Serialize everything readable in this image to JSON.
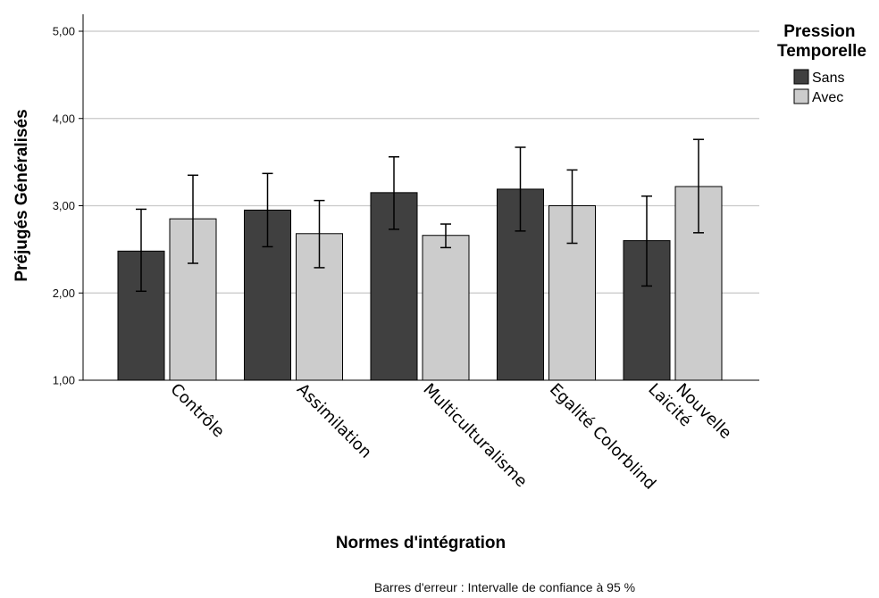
{
  "chart_data": {
    "type": "bar",
    "categories": [
      "Contrôle",
      "Assimilation",
      "Multiculturalisme",
      "Egalité Colorblind",
      "Nouvelle\nLaïcité"
    ],
    "category_lines": [
      [
        "Contrôle"
      ],
      [
        "Assimilation"
      ],
      [
        "Multiculturalisme"
      ],
      [
        "Egalité Colorblind"
      ],
      [
        "Nouvelle",
        "Laïcité"
      ]
    ],
    "series": [
      {
        "name": "Sans",
        "color": "#404040",
        "values": [
          2.48,
          2.95,
          3.15,
          3.19,
          2.6
        ],
        "ci_low": [
          2.02,
          2.53,
          2.73,
          2.71,
          2.08
        ],
        "ci_high": [
          2.96,
          3.37,
          3.56,
          3.67,
          3.11
        ]
      },
      {
        "name": "Avec",
        "color": "#cccccc",
        "values": [
          2.85,
          2.68,
          2.66,
          3.0,
          3.22
        ],
        "ci_low": [
          2.34,
          2.29,
          2.52,
          2.57,
          2.69
        ],
        "ci_high": [
          3.35,
          3.06,
          2.79,
          3.41,
          3.76
        ]
      }
    ],
    "xlabel": "Normes d'intégration",
    "ylabel": "Préjugés Généralisés",
    "ylim": [
      1,
      5
    ],
    "yticks": [
      1,
      2,
      3,
      4,
      5
    ],
    "ytick_labels": [
      "1,00",
      "2,00",
      "3,00",
      "4,00",
      "5,00"
    ],
    "grid": true,
    "legend_title": "Pression Temporelle",
    "legend_title_lines": [
      "Pression",
      "Temporelle"
    ],
    "legend_position": "top-right",
    "footnote": "Barres d'erreur : Intervalle de confiance à 95 %"
  }
}
